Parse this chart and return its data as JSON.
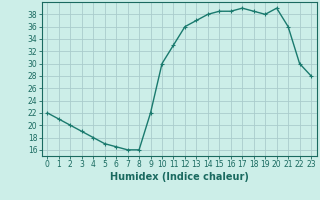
{
  "x": [
    0,
    1,
    2,
    3,
    4,
    5,
    6,
    7,
    8,
    9,
    10,
    11,
    12,
    13,
    14,
    15,
    16,
    17,
    18,
    19,
    20,
    21,
    22,
    23
  ],
  "y": [
    22,
    21,
    20,
    19,
    18,
    17,
    16.5,
    16,
    16,
    22,
    30,
    33,
    36,
    37,
    38,
    38.5,
    38.5,
    39,
    38.5,
    38,
    39,
    36,
    30,
    28
  ],
  "line_color": "#1a7a6e",
  "marker": "+",
  "bg_color": "#cceee8",
  "grid_color": "#aacccc",
  "xlabel": "Humidex (Indice chaleur)",
  "ylabel_ticks": [
    16,
    18,
    20,
    22,
    24,
    26,
    28,
    30,
    32,
    34,
    36,
    38
  ],
  "ylim": [
    15,
    40
  ],
  "xlim": [
    -0.5,
    23.5
  ],
  "tick_color": "#1a6a60",
  "label_color": "#1a6a60",
  "font_size": 5.5,
  "xlabel_fontsize": 7.0,
  "linewidth": 1.0,
  "markersize": 3.5
}
